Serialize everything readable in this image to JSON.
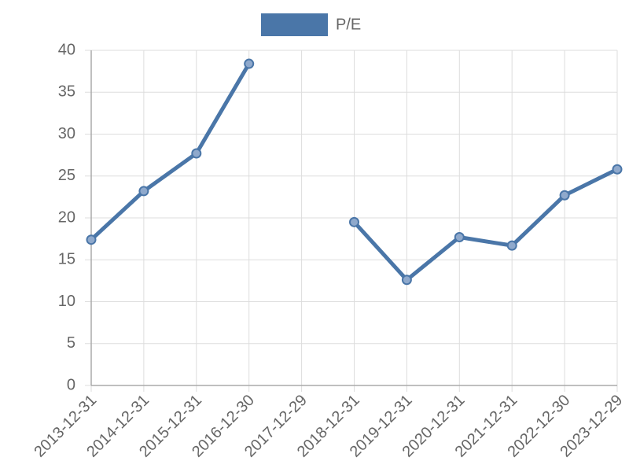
{
  "chart_data": {
    "type": "line",
    "categories": [
      "2013-12-31",
      "2014-12-31",
      "2015-12-31",
      "2016-12-30",
      "2017-12-29",
      "2018-12-31",
      "2019-12-31",
      "2020-12-31",
      "2021-12-31",
      "2022-12-30",
      "2023-12-29"
    ],
    "series": [
      {
        "name": "P/E",
        "color": "#4a76a8",
        "values": [
          17.4,
          23.2,
          27.7,
          38.4,
          null,
          19.5,
          12.6,
          17.7,
          16.7,
          22.7,
          25.8
        ]
      }
    ],
    "ylim": [
      0,
      40
    ],
    "yticks": [
      0,
      5,
      10,
      15,
      20,
      25,
      30,
      35,
      40
    ],
    "grid": true,
    "legend": "top"
  }
}
